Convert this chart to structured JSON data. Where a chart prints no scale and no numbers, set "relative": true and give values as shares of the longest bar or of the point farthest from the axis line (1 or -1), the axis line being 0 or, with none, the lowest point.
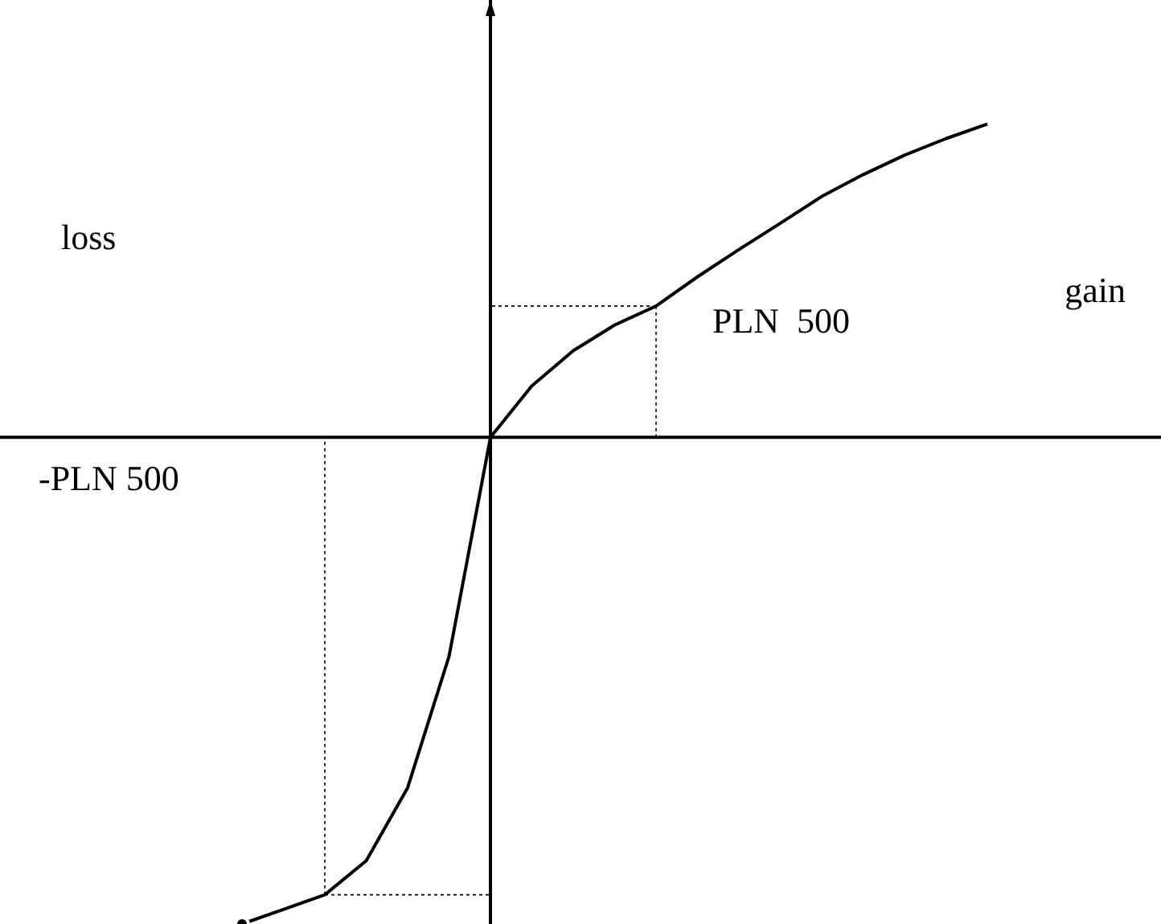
{
  "chart_data": {
    "type": "line",
    "relative": true,
    "categories": [
      null,
      null,
      null,
      null,
      null,
      null,
      null,
      null,
      null,
      null,
      null,
      null,
      null,
      null,
      null,
      null,
      null,
      null,
      null
    ],
    "series": [
      {
        "color": "#000000",
        "values": [
          -1.0,
          -0.97,
          -0.94,
          -0.87,
          -0.72,
          -0.45,
          0,
          0.106,
          0.178,
          0.231,
          0.27,
          0.33,
          0.386,
          0.44,
          0.495,
          0.54,
          0.58,
          0.614,
          0.644
        ]
      }
    ],
    "annotations": [
      "loss",
      "gain",
      "PLN  500",
      "-PLN 500"
    ]
  }
}
